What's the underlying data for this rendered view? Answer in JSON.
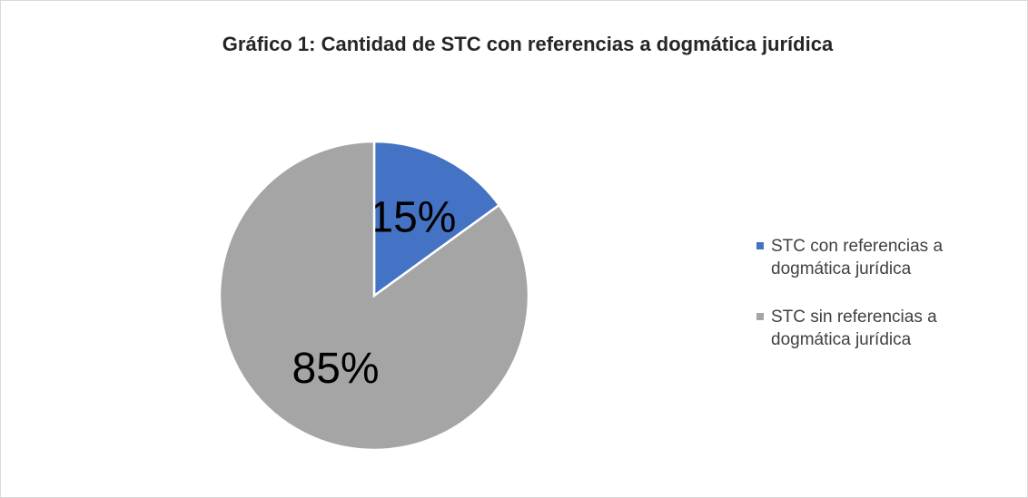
{
  "chart_data": {
    "type": "pie",
    "title": "Gráfico 1: Cantidad de STC con referencias a dogmática jurídica",
    "categories": [
      "STC con referencias a dogmática jurídica",
      "STC sin referencias a dogmática jurídica"
    ],
    "values": [
      15,
      85
    ],
    "value_labels": [
      "15%",
      "85%"
    ],
    "colors": [
      "#4472c4",
      "#a5a5a5"
    ],
    "legend": "right"
  }
}
